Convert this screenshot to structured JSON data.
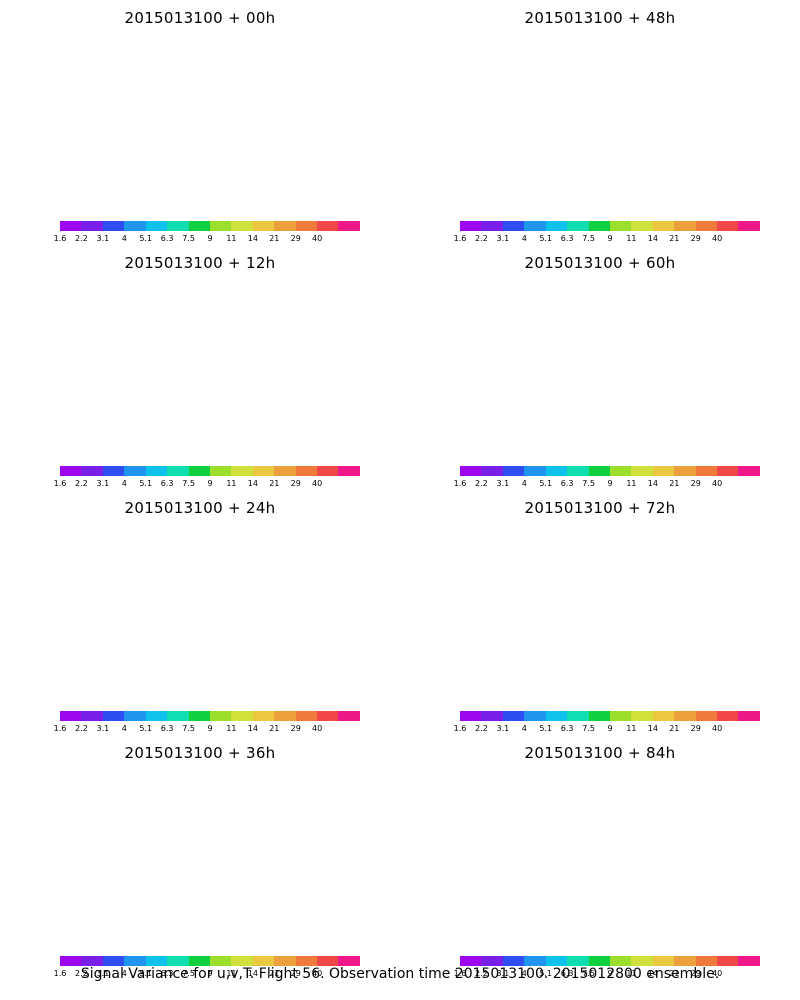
{
  "panels": [
    {
      "title": "2015013100 + 00h",
      "pattern": 0
    },
    {
      "title": "2015013100 + 48h",
      "pattern": 4
    },
    {
      "title": "2015013100 + 12h",
      "pattern": 1
    },
    {
      "title": "2015013100 + 60h",
      "pattern": 5
    },
    {
      "title": "2015013100 + 24h",
      "pattern": 2
    },
    {
      "title": "2015013100 + 72h",
      "pattern": 6
    },
    {
      "title": "2015013100 + 36h",
      "pattern": 3
    },
    {
      "title": "2015013100 + 84h",
      "pattern": 7
    }
  ],
  "colorbar": {
    "colors": [
      "#9e06f0",
      "#7a1fe8",
      "#2f4ef2",
      "#1f95ee",
      "#0fc2ec",
      "#10ddb0",
      "#10d040",
      "#9cde2c",
      "#d2e03c",
      "#ecc840",
      "#eba03c",
      "#f07a3c",
      "#f04848",
      "#ef1889"
    ],
    "labels": [
      "1.6",
      "2.2",
      "3.1",
      "4",
      "5.1",
      "6.3",
      "7.5",
      "9",
      "11",
      "14",
      "21",
      "29",
      "40"
    ]
  },
  "footer": "Signal Variance for u,v,T. Flight 56. Observation time 2015013100. 2015012800 ensemble."
}
